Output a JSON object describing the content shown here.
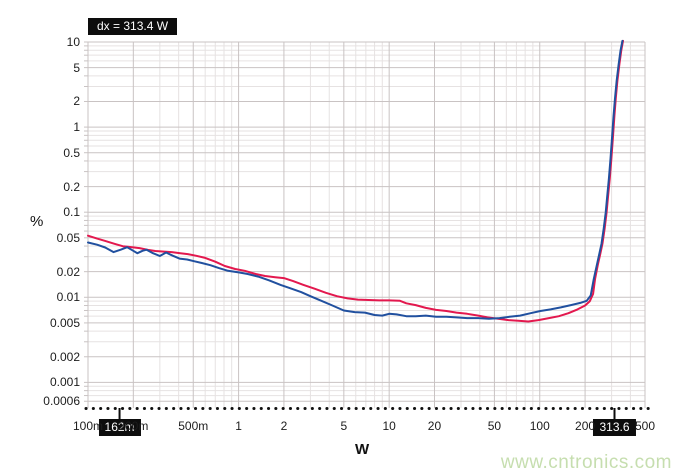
{
  "cursor_readout": {
    "dx_label": "dx = 313.4 W"
  },
  "watermark": "www.cntronics.com",
  "colors": {
    "series_red": "#e3184e",
    "series_blue": "#21509f",
    "grid_minor": "#e6e2e2",
    "grid_major": "#c9c3c3",
    "axis_dots": "#111111",
    "cursor_box_bg": "#0d0d0d",
    "cursor_box_text": "#ffffff",
    "watermark_green": "#c6deaf"
  },
  "chart_data": {
    "type": "line",
    "title": "",
    "xlabel": "W",
    "ylabel": "%",
    "x_axis": {
      "label": "W",
      "scale": "log",
      "min": 0.1,
      "max": 500,
      "ticks": [
        {
          "v": 0.1,
          "t": "100m"
        },
        {
          "v": 0.2,
          "t": "200m"
        },
        {
          "v": 0.5,
          "t": "500m"
        },
        {
          "v": 1,
          "t": "1"
        },
        {
          "v": 2,
          "t": "2"
        },
        {
          "v": 5,
          "t": "5"
        },
        {
          "v": 10,
          "t": "10"
        },
        {
          "v": 20,
          "t": "20"
        },
        {
          "v": 50,
          "t": "50"
        },
        {
          "v": 100,
          "t": "100"
        },
        {
          "v": 200,
          "t": "200"
        },
        {
          "v": 500,
          "t": "500"
        }
      ]
    },
    "y_axis": {
      "label": "%",
      "scale": "log",
      "min": 0.0005,
      "max": 10,
      "ticks": [
        {
          "v": 10,
          "t": "10"
        },
        {
          "v": 5,
          "t": "5"
        },
        {
          "v": 2,
          "t": "2"
        },
        {
          "v": 1,
          "t": "1"
        },
        {
          "v": 0.5,
          "t": "0.5"
        },
        {
          "v": 0.2,
          "t": "0.2"
        },
        {
          "v": 0.1,
          "t": "0.1"
        },
        {
          "v": 0.05,
          "t": "0.05"
        },
        {
          "v": 0.02,
          "t": "0.02"
        },
        {
          "v": 0.01,
          "t": "0.01"
        },
        {
          "v": 0.005,
          "t": "0.005"
        },
        {
          "v": 0.002,
          "t": "0.002"
        },
        {
          "v": 0.001,
          "t": "0.001"
        },
        {
          "v": 0.0006,
          "t": "0.0006"
        }
      ]
    },
    "grid": true,
    "legend_position": "none",
    "cursors": [
      {
        "x": 0.162,
        "label": "162m"
      },
      {
        "x": 313.6,
        "label": "313.6"
      }
    ],
    "series": [
      {
        "name": "red-trace",
        "color": "#e3184e",
        "points": [
          [
            0.1,
            0.053
          ],
          [
            0.115,
            0.049
          ],
          [
            0.13,
            0.046
          ],
          [
            0.15,
            0.0425
          ],
          [
            0.17,
            0.0398
          ],
          [
            0.19,
            0.039
          ],
          [
            0.22,
            0.0378
          ],
          [
            0.25,
            0.036
          ],
          [
            0.28,
            0.035
          ],
          [
            0.32,
            0.0344
          ],
          [
            0.36,
            0.034
          ],
          [
            0.41,
            0.033
          ],
          [
            0.46,
            0.0322
          ],
          [
            0.52,
            0.0308
          ],
          [
            0.6,
            0.029
          ],
          [
            0.7,
            0.0262
          ],
          [
            0.81,
            0.0233
          ],
          [
            0.95,
            0.0215
          ],
          [
            1.1,
            0.0205
          ],
          [
            1.3,
            0.0188
          ],
          [
            1.5,
            0.0178
          ],
          [
            1.75,
            0.0172
          ],
          [
            2.0,
            0.0168
          ],
          [
            2.3,
            0.0155
          ],
          [
            2.7,
            0.014
          ],
          [
            3.2,
            0.0126
          ],
          [
            3.8,
            0.0113
          ],
          [
            4.5,
            0.0103
          ],
          [
            5.3,
            0.0097
          ],
          [
            6.2,
            0.0094
          ],
          [
            7.3,
            0.0093
          ],
          [
            8.6,
            0.0092
          ],
          [
            10.0,
            0.0092
          ],
          [
            11.8,
            0.0091
          ],
          [
            13.0,
            0.0085
          ],
          [
            15.0,
            0.0081
          ],
          [
            17.5,
            0.0075
          ],
          [
            20.5,
            0.0071
          ],
          [
            24,
            0.0069
          ],
          [
            28,
            0.0066
          ],
          [
            33,
            0.0064
          ],
          [
            39,
            0.0061
          ],
          [
            45,
            0.0058
          ],
          [
            53,
            0.0056
          ],
          [
            62,
            0.0054
          ],
          [
            72,
            0.0053
          ],
          [
            84,
            0.0052
          ],
          [
            98,
            0.0054
          ],
          [
            115,
            0.0057
          ],
          [
            134,
            0.006
          ],
          [
            155,
            0.0065
          ],
          [
            178,
            0.0072
          ],
          [
            200,
            0.008
          ],
          [
            215,
            0.009
          ],
          [
            226,
            0.011
          ],
          [
            233,
            0.0165
          ],
          [
            243,
            0.024
          ],
          [
            252,
            0.032
          ],
          [
            261,
            0.043
          ],
          [
            270,
            0.065
          ],
          [
            278,
            0.1
          ],
          [
            285,
            0.16
          ],
          [
            292,
            0.25
          ],
          [
            299,
            0.43
          ],
          [
            306,
            0.75
          ],
          [
            313,
            1.35
          ],
          [
            320,
            2.2
          ],
          [
            328,
            3.5
          ],
          [
            338,
            5.5
          ],
          [
            348,
            8.0
          ],
          [
            357,
            10.3
          ]
        ]
      },
      {
        "name": "blue-trace",
        "color": "#21509f",
        "points": [
          [
            0.1,
            0.044
          ],
          [
            0.115,
            0.0415
          ],
          [
            0.13,
            0.0385
          ],
          [
            0.148,
            0.034
          ],
          [
            0.165,
            0.0362
          ],
          [
            0.182,
            0.0388
          ],
          [
            0.2,
            0.0352
          ],
          [
            0.213,
            0.033
          ],
          [
            0.23,
            0.0352
          ],
          [
            0.245,
            0.0362
          ],
          [
            0.27,
            0.033
          ],
          [
            0.3,
            0.0306
          ],
          [
            0.33,
            0.0336
          ],
          [
            0.365,
            0.0308
          ],
          [
            0.405,
            0.0285
          ],
          [
            0.455,
            0.0278
          ],
          [
            0.51,
            0.0265
          ],
          [
            0.57,
            0.0253
          ],
          [
            0.65,
            0.0238
          ],
          [
            0.74,
            0.022
          ],
          [
            0.85,
            0.0205
          ],
          [
            1.0,
            0.0196
          ],
          [
            1.15,
            0.0188
          ],
          [
            1.35,
            0.0175
          ],
          [
            1.6,
            0.0158
          ],
          [
            1.9,
            0.014
          ],
          [
            2.2,
            0.0128
          ],
          [
            2.6,
            0.0115
          ],
          [
            3.0,
            0.0103
          ],
          [
            3.5,
            0.0092
          ],
          [
            4.2,
            0.008
          ],
          [
            5.0,
            0.007
          ],
          [
            5.9,
            0.0067
          ],
          [
            6.9,
            0.0066
          ],
          [
            8.0,
            0.0062
          ],
          [
            9.0,
            0.0061
          ],
          [
            10.0,
            0.0064
          ],
          [
            11.2,
            0.0063
          ],
          [
            13,
            0.006
          ],
          [
            15,
            0.006
          ],
          [
            17.5,
            0.0061
          ],
          [
            20.5,
            0.0059
          ],
          [
            24,
            0.0059
          ],
          [
            28,
            0.0058
          ],
          [
            33,
            0.0057
          ],
          [
            39,
            0.0057
          ],
          [
            46,
            0.0056
          ],
          [
            54,
            0.0057
          ],
          [
            63,
            0.0059
          ],
          [
            74,
            0.0061
          ],
          [
            87,
            0.0065
          ],
          [
            101,
            0.0069
          ],
          [
            118,
            0.0072
          ],
          [
            138,
            0.0076
          ],
          [
            161,
            0.0081
          ],
          [
            186,
            0.0086
          ],
          [
            205,
            0.0091
          ],
          [
            218,
            0.0105
          ],
          [
            228,
            0.016
          ],
          [
            239,
            0.0235
          ],
          [
            248,
            0.0315
          ],
          [
            257,
            0.0425
          ],
          [
            266,
            0.064
          ],
          [
            274,
            0.099
          ],
          [
            281,
            0.158
          ],
          [
            288,
            0.248
          ],
          [
            295,
            0.425
          ],
          [
            302,
            0.74
          ],
          [
            309,
            1.33
          ],
          [
            316,
            2.18
          ],
          [
            324,
            3.45
          ],
          [
            334,
            5.4
          ],
          [
            344,
            7.9
          ],
          [
            354,
            10.3
          ]
        ]
      }
    ]
  }
}
